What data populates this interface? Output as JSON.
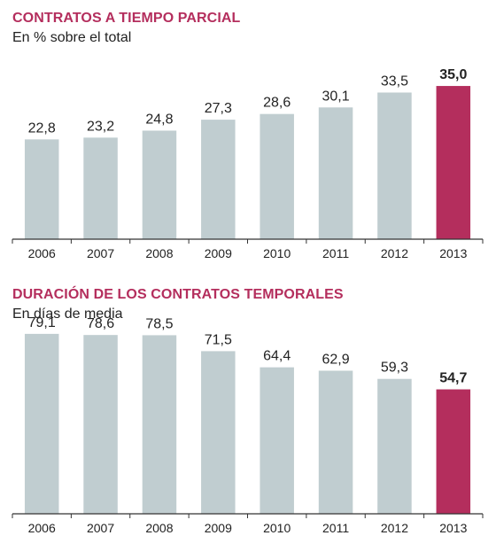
{
  "colors": {
    "bar": "#c0cdd0",
    "highlight": "#b42e5d",
    "title": "#b42e5d",
    "axis": "#333333",
    "text": "#222222"
  },
  "chart_data": [
    {
      "type": "bar",
      "title": "CONTRATOS A TIEMPO PARCIAL",
      "subtitle": "En % sobre el total",
      "categories": [
        "2006",
        "2007",
        "2008",
        "2009",
        "2010",
        "2011",
        "2012",
        "2013"
      ],
      "values": [
        22.8,
        23.2,
        24.8,
        27.3,
        28.6,
        30.1,
        33.5,
        35.0
      ],
      "value_labels": [
        "22,8",
        "23,2",
        "24,8",
        "27,3",
        "28,6",
        "30,1",
        "33,5",
        "35,0"
      ],
      "highlight_index": 7,
      "ylim": [
        0,
        42.5
      ],
      "grid": false,
      "xlabel": "",
      "ylabel": ""
    },
    {
      "type": "bar",
      "title": "DURACIÓN DE LOS CONTRATOS TEMPORALES",
      "subtitle": "En días de media",
      "categories": [
        "2006",
        "2007",
        "2008",
        "2009",
        "2010",
        "2011",
        "2012",
        "2013"
      ],
      "values": [
        79.1,
        78.6,
        78.5,
        71.5,
        64.4,
        62.9,
        59.3,
        54.7
      ],
      "value_labels": [
        "79,1",
        "78,6",
        "78,5",
        "71,5",
        "64,4",
        "62,9",
        "59,3",
        "54,7"
      ],
      "highlight_index": 7,
      "ylim": [
        0,
        81
      ],
      "grid": false,
      "xlabel": "",
      "ylabel": ""
    }
  ]
}
